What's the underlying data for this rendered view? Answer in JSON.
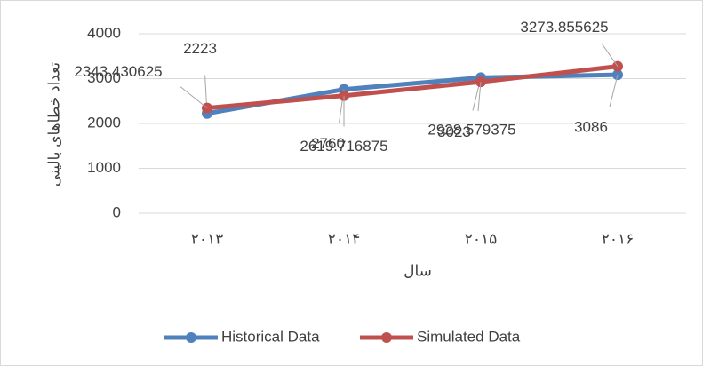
{
  "chart_data": {
    "type": "line",
    "categories": [
      "۲۰۱۳",
      "۲۰۱۴",
      "۲۰۱۵",
      "۲۰۱۶"
    ],
    "x_label": "سال",
    "y_label": "تعداد خطاهای بالینی",
    "series": [
      {
        "name": "Historical Data",
        "color": "#4f81bd",
        "values": [
          2223,
          2760,
          3023,
          3086
        ]
      },
      {
        "name": "Simulated Data",
        "color": "#c0504d",
        "values": [
          2343.430625,
          2619.716875,
          2928.579375,
          3273.855625
        ]
      }
    ],
    "ylim": [
      0,
      4000
    ],
    "yticks": [
      0,
      1000,
      2000,
      3000,
      4000
    ],
    "grid": true,
    "legend": "bottom"
  }
}
